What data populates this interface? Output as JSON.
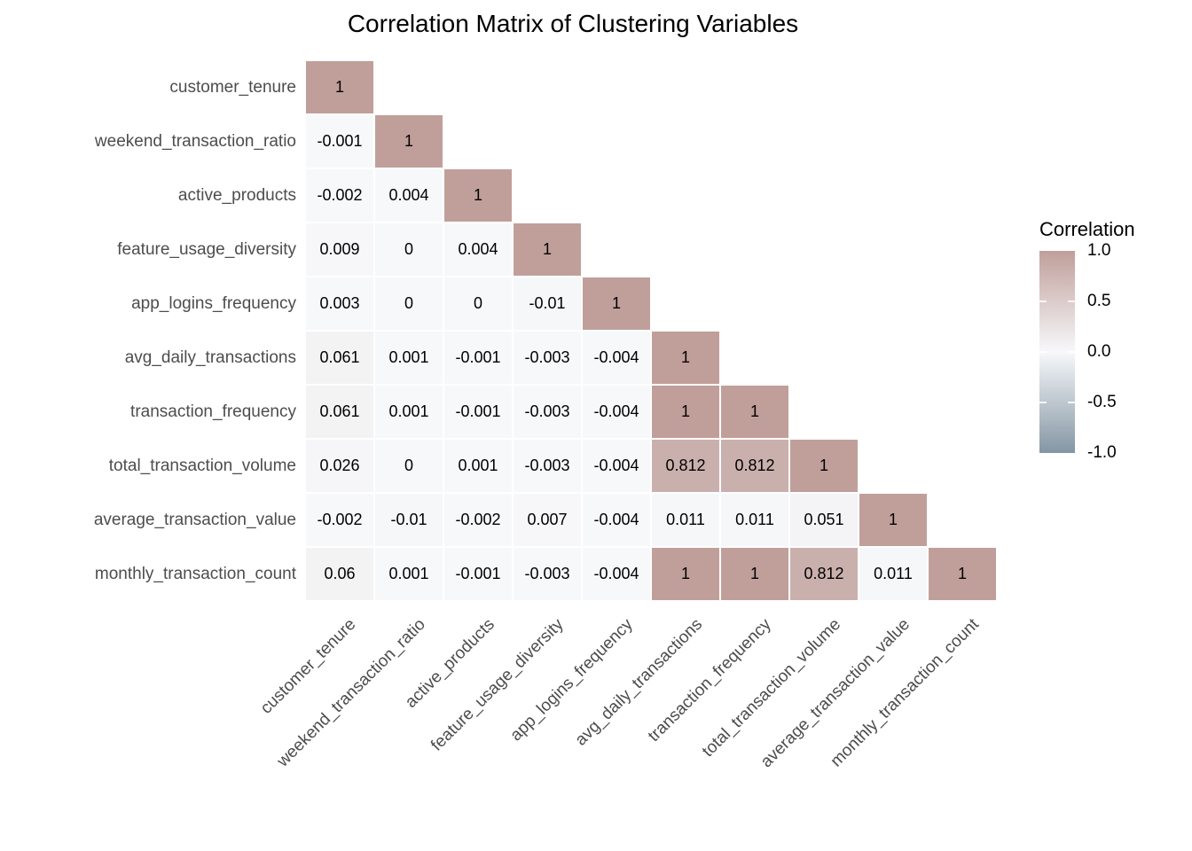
{
  "chart_data": {
    "type": "heatmap",
    "title": "Correlation Matrix of Clustering Variables",
    "shape": "lower-triangle",
    "variables": [
      "customer_tenure",
      "weekend_transaction_ratio",
      "active_products",
      "feature_usage_diversity",
      "app_logins_frequency",
      "avg_daily_transactions",
      "transaction_frequency",
      "total_transaction_volume",
      "average_transaction_value",
      "monthly_transaction_count"
    ],
    "matrix": [
      [
        1
      ],
      [
        -0.001,
        1
      ],
      [
        -0.002,
        0.004,
        1
      ],
      [
        0.009,
        0,
        0.004,
        1
      ],
      [
        0.003,
        0,
        0,
        -0.01,
        1
      ],
      [
        0.061,
        0.001,
        -0.001,
        -0.003,
        -0.004,
        1
      ],
      [
        0.061,
        0.001,
        -0.001,
        -0.003,
        -0.004,
        1,
        1
      ],
      [
        0.026,
        0,
        0.001,
        -0.003,
        -0.004,
        0.812,
        0.812,
        1
      ],
      [
        -0.002,
        -0.01,
        -0.002,
        0.007,
        -0.004,
        0.011,
        0.011,
        0.051,
        1
      ],
      [
        0.06,
        0.001,
        -0.001,
        -0.003,
        -0.004,
        1,
        1,
        0.812,
        0.011,
        1
      ]
    ],
    "cell_labels": [
      [
        "1"
      ],
      [
        "-0.001",
        "1"
      ],
      [
        "-0.002",
        "0.004",
        "1"
      ],
      [
        "0.009",
        "0",
        "0.004",
        "1"
      ],
      [
        "0.003",
        "0",
        "0",
        "-0.01",
        "1"
      ],
      [
        "0.061",
        "0.001",
        "-0.001",
        "-0.003",
        "-0.004",
        "1"
      ],
      [
        "0.061",
        "0.001",
        "-0.001",
        "-0.003",
        "-0.004",
        "1",
        "1"
      ],
      [
        "0.026",
        "0",
        "0.001",
        "-0.003",
        "-0.004",
        "0.812",
        "0.812",
        "1"
      ],
      [
        "-0.002",
        "-0.01",
        "-0.002",
        "0.007",
        "-0.004",
        "0.011",
        "0.011",
        "0.051",
        "1"
      ],
      [
        "0.06",
        "0.001",
        "-0.001",
        "-0.003",
        "-0.004",
        "1",
        "1",
        "0.812",
        "0.011",
        "1"
      ]
    ],
    "color_scale": {
      "domain": [
        -1,
        1
      ],
      "high": "#c09f9b",
      "mid": "#f7f8fa",
      "low": "#8496a4"
    },
    "legend": {
      "title": "Correlation",
      "ticks": [
        "1.0",
        "0.5",
        "0.0",
        "-0.5",
        "-1.0"
      ]
    },
    "text_colors": {
      "title": "#000000",
      "axis_labels": "#4d4d4d",
      "cell_values": "#000000"
    },
    "layout_hints": {
      "grid": "off",
      "legend_position": "right",
      "x_labels_rotation_deg": 45
    }
  }
}
